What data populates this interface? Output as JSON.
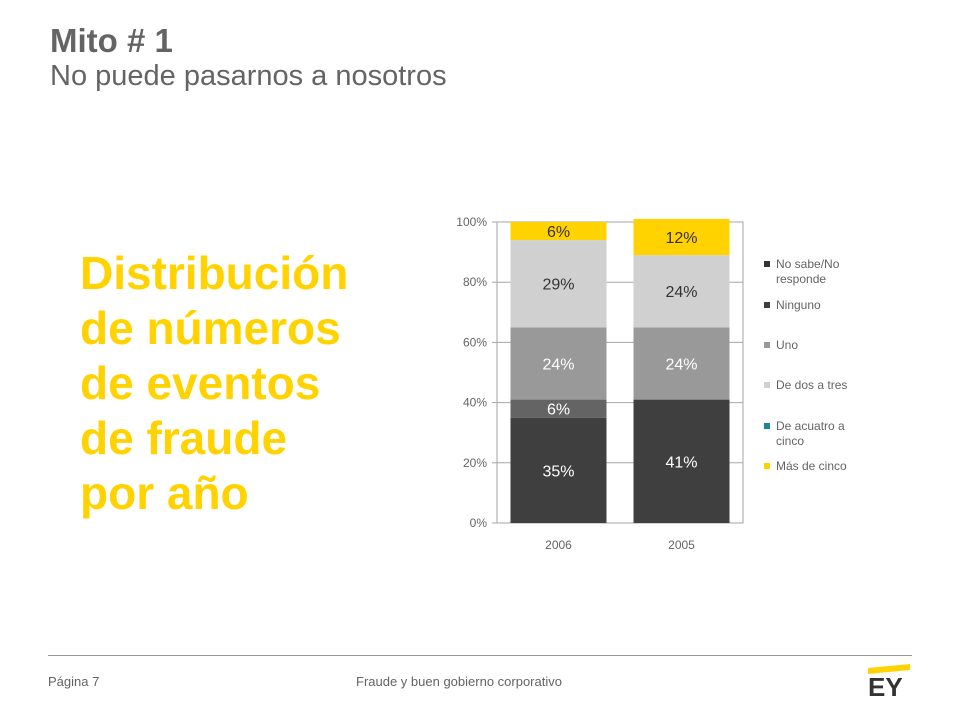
{
  "slide": {
    "title": "Mito # 1",
    "subtitle": "No puede pasarnos a nosotros",
    "heading_lines": [
      "Distribución",
      "de números",
      "de eventos",
      "de fraude",
      "por año"
    ],
    "footer_page": "Página 7",
    "footer_text": "Fraude y buen gobierno corporativo",
    "logo_text": "EY"
  },
  "chart_data": {
    "type": "bar",
    "stacked": true,
    "categories": [
      "2006",
      "2005"
    ],
    "ylim": [
      0,
      100
    ],
    "yticks": [
      "0%",
      "20%",
      "40%",
      "60%",
      "80%",
      "100%"
    ],
    "series": [
      {
        "name": "No sabe/No responde",
        "name_lines": [
          "No sabe/No",
          "responde"
        ],
        "color": "#333333",
        "values": [
          0,
          0
        ],
        "labels": [
          "",
          ""
        ]
      },
      {
        "name": "Ninguno",
        "name_lines": [
          "Ninguno"
        ],
        "color": "#3f3f3f",
        "values": [
          35,
          41
        ],
        "labels": [
          "35%",
          "41%"
        ]
      },
      {
        "name": "Uno",
        "name_lines": [
          "Uno"
        ],
        "color": "#646464",
        "values": [
          6,
          0
        ],
        "labels": [
          "6%",
          ""
        ]
      },
      {
        "name": "De dos a tres",
        "name_lines": [
          "De dos a tres"
        ],
        "color": "#999999",
        "values": [
          24,
          24
        ],
        "labels": [
          "24%",
          "24%"
        ]
      },
      {
        "name": "De acuatro a cinco",
        "name_lines": [
          "De acuatro a",
          "cinco"
        ],
        "color": "#d0d0d0",
        "values": [
          29,
          24
        ],
        "labels": [
          "29%",
          "24%"
        ]
      },
      {
        "name": "Más de cinco",
        "name_lines": [
          "Más de cinco"
        ],
        "color": "#ffd200",
        "values": [
          6,
          12
        ],
        "labels": [
          "6%",
          "12%"
        ]
      }
    ],
    "legend_markers": [
      "#333333",
      "#3f3f3f",
      "#999999",
      "#d0d0d0",
      "#1a8a8f",
      "#ffd200"
    ],
    "label_colors": {
      "#333333": "#ffffff",
      "#3f3f3f": "#ffffff",
      "#646464": "#ffffff",
      "#999999": "#ffffff",
      "#d0d0d0": "#333333",
      "#ffd200": "#333333"
    },
    "legend_position": "right",
    "grid": true
  }
}
